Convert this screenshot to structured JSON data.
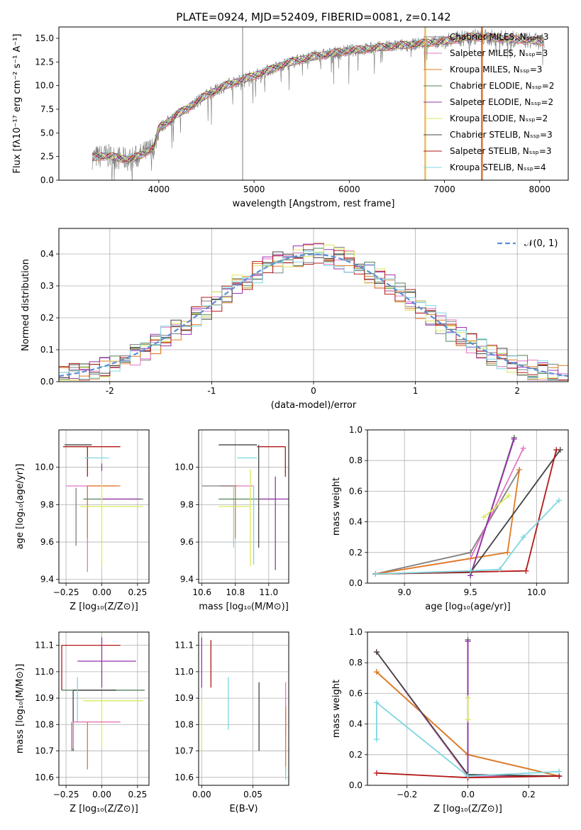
{
  "figure_title": "PLATE=0924, MJD=52409, FIBERID=0081, z=0.142",
  "colors": {
    "Chabrier MILES": "#7f7f7f",
    "Salpeter MILES": "#e377c2",
    "Kroupa MILES": "#e07b22",
    "Chabrier ELODIE": "#55825a",
    "Salpeter ELODIE": "#9b30b0",
    "Kroupa ELODIE": "#d9ea5a",
    "Chabrier STELIB": "#444444",
    "Salpeter STELIB": "#b21818",
    "Kroupa STELIB": "#7fd6e0",
    "normal": "#5b8fd6"
  },
  "chart_data": [
    {
      "id": "spectrum",
      "type": "line",
      "xlabel": "wavelength [Angstrom, rest frame]",
      "ylabel": "Flux [fλ10⁻¹⁷ erg cm⁻² s⁻¹ A⁻¹]",
      "xlim": [
        2950,
        8300
      ],
      "ylim": [
        0,
        16.2
      ],
      "xticks": [
        4000,
        5000,
        6000,
        7000,
        8000
      ],
      "yticks": [
        0.0,
        2.5,
        5.0,
        7.5,
        10.0,
        12.5,
        15.0
      ],
      "legend_location": "upper right",
      "legend": [
        "Chabrier MILES, Nₛₛₚ=3",
        "Salpeter MILES, Nₛₛₚ=3",
        "Kroupa MILES, Nₛₛₚ=3",
        "Chabrier ELODIE, Nₛₛₚ=2",
        "Salpeter ELODIE, Nₛₛₚ=2",
        "Kroupa ELODIE, Nₛₛₚ=2",
        "Chabrier STELIB, Nₛₛₚ=3",
        "Salpeter STELIB, Nₛₛₚ=3",
        "Kroupa STELIB, Nₛₛₚ=4"
      ],
      "continuum": {
        "x": [
          3300,
          3450,
          3600,
          3700,
          3800,
          3900,
          3950,
          4000,
          4100,
          4200,
          4300,
          4500,
          4700,
          4900,
          5100,
          5300,
          5500,
          5700,
          6000,
          6300,
          6600,
          7000,
          7300,
          7600,
          7900,
          8050
        ],
        "y": [
          2.4,
          2.6,
          2.3,
          2.2,
          2.6,
          3.2,
          3.5,
          5.5,
          6.2,
          7.0,
          7.6,
          9.0,
          10.0,
          10.7,
          11.4,
          12.2,
          12.8,
          13.2,
          13.7,
          14.0,
          14.3,
          14.7,
          15.2,
          15.0,
          14.8,
          14.6
        ]
      },
      "spikes": [
        {
          "x": 4880,
          "y_top": 16.2,
          "color": "Chabrier MILES"
        },
        {
          "x": 6795,
          "y_top": 16.2,
          "color": "Kroupa MILES"
        },
        {
          "x": 6805,
          "y_top": 16.2,
          "color": "Kroupa ELODIE"
        },
        {
          "x": 7390,
          "y_top": 16.2,
          "color": "Salpeter STELIB"
        },
        {
          "x": 7400,
          "y_top": 16.2,
          "color": "Kroupa MILES"
        }
      ]
    },
    {
      "id": "residuals",
      "type": "bar",
      "xlabel": "(data-model)/error",
      "ylabel": "Normed distribution",
      "xlim": [
        -2.5,
        2.5
      ],
      "ylim": [
        0,
        0.48
      ],
      "xticks": [
        -2,
        -1,
        0,
        1,
        2
      ],
      "yticks": [
        0.0,
        0.1,
        0.2,
        0.3,
        0.4
      ],
      "legend": [
        "𝒩(0, 1)"
      ],
      "legend_location": "upper right",
      "bins": {
        "start": -2.5,
        "width": 0.1,
        "count": 50
      },
      "gaussian": {
        "mean": 0,
        "sigma": 1
      }
    },
    {
      "id": "age-vs-Z",
      "type": "scatter",
      "xlabel": "Z [log₁₀(Z/Z⊙)]",
      "ylabel": "age  [log₁₀(age/yr)]",
      "xlim": [
        -0.3,
        0.33
      ],
      "ylim": [
        9.38,
        10.2
      ],
      "xticks": [
        -0.25,
        0.0,
        0.25
      ],
      "xticklabels": [
        "−0.25",
        "0.00",
        "0.25"
      ],
      "yticks": [
        9.4,
        9.6,
        9.8,
        10.0
      ],
      "errorbars": [
        {
          "model": "Chabrier STELIB",
          "x": -0.07,
          "xerr": [
            0.19,
            0.0
          ],
          "y": 10.12,
          "yerr": [
            0.0,
            0.0
          ]
        },
        {
          "model": "Salpeter STELIB",
          "x": -0.1,
          "xerr": [
            0.17,
            0.23
          ],
          "y": 10.11,
          "yerr": [
            0.16,
            0.0
          ]
        },
        {
          "model": "Kroupa STELIB",
          "x": -0.12,
          "xerr": [
            0.0,
            0.17
          ],
          "y": 10.05,
          "yerr": [
            0.0,
            0.0
          ]
        },
        {
          "model": "Salpeter MILES",
          "x": -0.1,
          "xerr": [
            0.15,
            0.2
          ],
          "y": 9.9,
          "yerr": [
            0.46,
            0.0
          ]
        },
        {
          "model": "Kroupa MILES",
          "x": -0.1,
          "xerr": [
            0.0,
            0.23
          ],
          "y": 9.9,
          "yerr": [
            0.28,
            0.0
          ]
        },
        {
          "model": "Chabrier MILES",
          "x": -0.18,
          "xerr": [
            0.0,
            0.0
          ],
          "y": 9.89,
          "yerr": [
            0.31,
            0.0
          ]
        },
        {
          "model": "Chabrier ELODIE",
          "x": -0.13,
          "xerr": [
            0.0,
            0.42
          ],
          "y": 9.83,
          "yerr": [
            0.0,
            0.0
          ]
        },
        {
          "model": "Salpeter ELODIE",
          "x": 0.0,
          "xerr": [
            0.0,
            0.27
          ],
          "y": 9.83,
          "yerr": [
            0.0,
            0.0
          ]
        },
        {
          "model": "Salpeter ELODIE",
          "x": 0.0,
          "xerr": [
            0.0,
            0.0
          ],
          "y": 10.0,
          "yerr": [
            0.02,
            0.02
          ]
        },
        {
          "model": "Kroupa ELODIE",
          "x": 0.0,
          "xerr": [
            0.15,
            0.29
          ],
          "y": 9.79,
          "yerr": [
            0.32,
            0.12
          ]
        }
      ]
    },
    {
      "id": "age-vs-mass",
      "type": "scatter",
      "xlabel": "mass [log₁₀(M/M⊙)]",
      "ylabel": "",
      "xlim": [
        10.58,
        11.12
      ],
      "ylim": [
        9.38,
        10.2
      ],
      "xticks": [
        10.6,
        10.8,
        11.0
      ],
      "yticks": [
        9.4,
        9.6,
        9.8,
        10.0
      ],
      "errorbars": [
        {
          "model": "Chabrier STELIB",
          "x": 10.93,
          "xerr": [
            0.23,
            0.0
          ],
          "y": 10.12,
          "yerr": [
            0.0,
            0.0
          ]
        },
        {
          "model": "Salpeter STELIB",
          "x": 11.1,
          "xerr": [
            0.17,
            0.0
          ],
          "y": 10.11,
          "yerr": [
            0.16,
            0.0
          ]
        },
        {
          "model": "Kroupa STELIB",
          "x": 10.93,
          "xerr": [
            0.12,
            0.0
          ],
          "y": 10.05,
          "yerr": [
            0.0,
            0.0
          ]
        },
        {
          "model": "Chabrier STELIB",
          "x": 10.94,
          "xerr": [
            0.0,
            0.0
          ],
          "y": 10.12,
          "yerr": [
            0.55,
            0.0
          ]
        },
        {
          "model": "Salpeter MILES",
          "x": 10.81,
          "xerr": [
            0.1,
            0.1
          ],
          "y": 9.9,
          "yerr": [
            0.0,
            0.0
          ]
        },
        {
          "model": "Kroupa MILES",
          "x": 10.81,
          "xerr": [
            0.1,
            0.0
          ],
          "y": 9.9,
          "yerr": [
            0.0,
            0.0
          ]
        },
        {
          "model": "Chabrier MILES",
          "x": 10.8,
          "xerr": [
            0.2,
            0.0
          ],
          "y": 9.9,
          "yerr": [
            0.0,
            0.0
          ]
        },
        {
          "model": "Kroupa MILES",
          "x": 10.8,
          "xerr": [
            0.0,
            0.0
          ],
          "y": 9.9,
          "yerr": [
            0.28,
            0.0
          ]
        },
        {
          "model": "Kroupa STELIB",
          "x": 10.79,
          "xerr": [
            0.0,
            0.0
          ],
          "y": 9.9,
          "yerr": [
            0.33,
            0.0
          ]
        },
        {
          "model": "Chabrier ELODIE",
          "x": 10.93,
          "xerr": [
            0.23,
            0.1
          ],
          "y": 9.83,
          "yerr": [
            0.0,
            0.0
          ]
        },
        {
          "model": "Salpeter ELODIE",
          "x": 11.04,
          "xerr": [
            0.1,
            0.1
          ],
          "y": 9.83,
          "yerr": [
            0.38,
            0.12
          ]
        },
        {
          "model": "Kroupa ELODIE",
          "x": 10.89,
          "xerr": [
            0.19,
            0.0
          ],
          "y": 9.79,
          "yerr": [
            0.32,
            0.2
          ]
        },
        {
          "model": "Kroupa STELIB",
          "x": 10.91,
          "xerr": [
            0.0,
            0.0
          ],
          "y": 9.9,
          "yerr": [
            0.42,
            0.0
          ]
        }
      ]
    },
    {
      "id": "weight-vs-age",
      "type": "line",
      "xlabel": "age  [log₁₀(age/yr)]",
      "ylabel": "mass weight",
      "xlim": [
        8.72,
        10.24
      ],
      "ylim": [
        0,
        1.0
      ],
      "xticks": [
        9.0,
        9.5,
        10.0
      ],
      "yticks": [
        0.0,
        0.2,
        0.4,
        0.6,
        0.8,
        1.0
      ],
      "series": [
        {
          "model": "Chabrier MILES",
          "x": [
            8.78,
            9.5,
            9.87
          ],
          "y": [
            0.06,
            0.2,
            0.74
          ]
        },
        {
          "model": "Salpeter MILES",
          "x": [
            8.78,
            9.5,
            9.9
          ],
          "y": [
            0.06,
            0.16,
            0.88
          ]
        },
        {
          "model": "Kroupa MILES",
          "x": [
            8.78,
            9.78,
            9.87
          ],
          "y": [
            0.06,
            0.2,
            0.74
          ]
        },
        {
          "model": "Chabrier ELODIE",
          "x": [
            9.5,
            9.83
          ],
          "y": [
            0.05,
            0.95
          ]
        },
        {
          "model": "Salpeter ELODIE",
          "x": [
            9.5,
            9.83
          ],
          "y": [
            0.05,
            0.94
          ]
        },
        {
          "model": "Kroupa ELODIE",
          "x": [
            9.6,
            9.79
          ],
          "y": [
            0.43,
            0.57
          ]
        },
        {
          "model": "Chabrier STELIB",
          "x": [
            8.78,
            9.5,
            10.18
          ],
          "y": [
            0.06,
            0.07,
            0.87
          ]
        },
        {
          "model": "Salpeter STELIB",
          "x": [
            8.78,
            9.92,
            10.15
          ],
          "y": [
            0.06,
            0.08,
            0.87
          ]
        },
        {
          "model": "Kroupa STELIB",
          "x": [
            8.78,
            9.5,
            9.72,
            9.9,
            10.17
          ],
          "y": [
            0.06,
            0.08,
            0.09,
            0.3,
            0.54
          ]
        }
      ]
    },
    {
      "id": "mass-vs-Z",
      "type": "scatter",
      "xlabel": "Z [log₁₀(Z/Z⊙)]",
      "ylabel": "mass [log₁₀(M/M⊙)]",
      "xlim": [
        -0.3,
        0.33
      ],
      "ylim": [
        10.57,
        11.15
      ],
      "xticks": [
        -0.25,
        0.0,
        0.25
      ],
      "xticklabels": [
        "−0.25",
        "0.00",
        "0.25"
      ],
      "yticks": [
        10.6,
        10.7,
        10.8,
        10.9,
        11.0,
        11.1
      ],
      "errorbars": [
        {
          "model": "Salpeter STELIB",
          "x": -0.28,
          "xerr": [
            0.0,
            0.41
          ],
          "y": 11.1,
          "yerr": [
            0.17,
            0.0
          ]
        },
        {
          "model": "Salpeter ELODIE",
          "x": 0.0,
          "xerr": [
            0.17,
            0.24
          ],
          "y": 11.04,
          "yerr": [
            0.1,
            0.09
          ]
        },
        {
          "model": "Chabrier ELODIE",
          "x": -0.28,
          "xerr": [
            0.0,
            0.58
          ],
          "y": 10.93,
          "yerr": [
            0.0,
            0.0
          ]
        },
        {
          "model": "Chabrier STELIB",
          "x": -0.2,
          "xerr": [
            0.0,
            0.3
          ],
          "y": 10.93,
          "yerr": [
            0.23,
            0.0
          ]
        },
        {
          "model": "Kroupa STELIB",
          "x": -0.17,
          "xerr": [
            0.0,
            0.0
          ],
          "y": 10.93,
          "yerr": [
            0.12,
            0.05
          ]
        },
        {
          "model": "Kroupa ELODIE",
          "x": 0.0,
          "xerr": [
            0.13,
            0.29
          ],
          "y": 10.89,
          "yerr": [
            0.18,
            0.0
          ]
        },
        {
          "model": "Kroupa MILES",
          "x": -0.1,
          "xerr": [
            0.1,
            0.23
          ],
          "y": 10.81,
          "yerr": [
            0.18,
            0.0
          ]
        },
        {
          "model": "Salpeter MILES",
          "x": -0.2,
          "xerr": [
            0.0,
            0.33
          ],
          "y": 10.81,
          "yerr": [
            0.1,
            0.0
          ]
        },
        {
          "model": "Chabrier MILES",
          "x": -0.21,
          "xerr": [
            0.0,
            0.0
          ],
          "y": 10.81,
          "yerr": [
            0.11,
            0.0
          ]
        }
      ]
    },
    {
      "id": "mass-vs-ebv",
      "type": "scatter",
      "xlabel": "E(B-V)",
      "ylabel": "",
      "xlim": [
        -0.003,
        0.085
      ],
      "ylim": [
        10.57,
        11.15
      ],
      "xticks": [
        0.0,
        0.05
      ],
      "xticklabels": [
        "0.00",
        "0.05"
      ],
      "yticks": [
        10.6,
        10.7,
        10.8,
        10.9,
        11.0,
        11.1
      ],
      "errorbars": [
        {
          "model": "Salpeter ELODIE",
          "x": 0.0,
          "xerr": [
            0.0,
            0.0
          ],
          "y": 11.04,
          "yerr": [
            0.1,
            0.09
          ]
        },
        {
          "model": "Kroupa ELODIE",
          "x": 0.0,
          "xerr": [
            0.0,
            0.0
          ],
          "y": 10.89,
          "yerr": [
            0.19,
            0.0
          ]
        },
        {
          "model": "Salpeter STELIB",
          "x": 0.009,
          "xerr": [
            0.0,
            0.0
          ],
          "y": 11.05,
          "yerr": [
            0.11,
            0.07
          ]
        },
        {
          "model": "Kroupa STELIB",
          "x": 0.026,
          "xerr": [
            0.0,
            0.0
          ],
          "y": 10.88,
          "yerr": [
            0.1,
            0.1
          ]
        },
        {
          "model": "Chabrier STELIB",
          "x": 0.056,
          "xerr": [
            0.0,
            0.0
          ],
          "y": 10.83,
          "yerr": [
            0.13,
            0.13
          ]
        },
        {
          "model": "Salpeter MILES",
          "x": 0.082,
          "xerr": [
            0.0,
            0.0
          ],
          "y": 10.86,
          "yerr": [
            0.1,
            0.1
          ]
        },
        {
          "model": "Kroupa MILES",
          "x": 0.082,
          "xerr": [
            0.0,
            0.0
          ],
          "y": 10.72,
          "yerr": [
            0.1,
            0.15
          ]
        },
        {
          "model": "Kroupa STELIB",
          "x": 0.082,
          "xerr": [
            0.0,
            0.0
          ],
          "y": 10.61,
          "yerr": [
            0.02,
            0.03
          ]
        }
      ]
    },
    {
      "id": "weight-vs-Z",
      "type": "line",
      "xlabel": "Z [log₁₀(Z/Z⊙)]",
      "ylabel": "mass weight",
      "xlim": [
        -0.33,
        0.33
      ],
      "ylim": [
        0,
        1.0
      ],
      "xticks": [
        -0.2,
        0.0,
        0.2
      ],
      "xticklabels": [
        "−0.2",
        "0.0",
        "0.2"
      ],
      "yticks": [
        0.0,
        0.2,
        0.4,
        0.6,
        0.8,
        1.0
      ],
      "series": [
        {
          "model": "Chabrier MILES",
          "x": [
            -0.3,
            0.0,
            0.3
          ],
          "y": [
            0.74,
            0.2,
            0.06
          ]
        },
        {
          "model": "Kroupa MILES",
          "x": [
            -0.3,
            0.0,
            0.3
          ],
          "y": [
            0.74,
            0.2,
            0.06
          ]
        },
        {
          "model": "Salpeter MILES",
          "x": [
            -0.3,
            0.0,
            0.3
          ],
          "y": [
            0.87,
            0.06,
            0.06
          ]
        },
        {
          "model": "Chabrier ELODIE",
          "x": [
            0.0,
            0.0
          ],
          "y": [
            0.05,
            0.95
          ]
        },
        {
          "model": "Salpeter ELODIE",
          "x": [
            0.0,
            0.0
          ],
          "y": [
            0.05,
            0.94
          ]
        },
        {
          "model": "Kroupa ELODIE",
          "x": [
            0.0,
            0.0
          ],
          "y": [
            0.43,
            0.57
          ]
        },
        {
          "model": "Chabrier STELIB",
          "x": [
            -0.3,
            0.0,
            0.3
          ],
          "y": [
            0.87,
            0.07,
            0.06
          ]
        },
        {
          "model": "Salpeter STELIB",
          "x": [
            -0.3,
            0.0,
            0.3
          ],
          "y": [
            0.08,
            0.05,
            0.06
          ]
        },
        {
          "model": "Kroupa STELIB",
          "x": [
            -0.3,
            -0.3,
            0.0,
            0.3
          ],
          "y": [
            0.3,
            0.54,
            0.06,
            0.09
          ]
        }
      ]
    }
  ]
}
